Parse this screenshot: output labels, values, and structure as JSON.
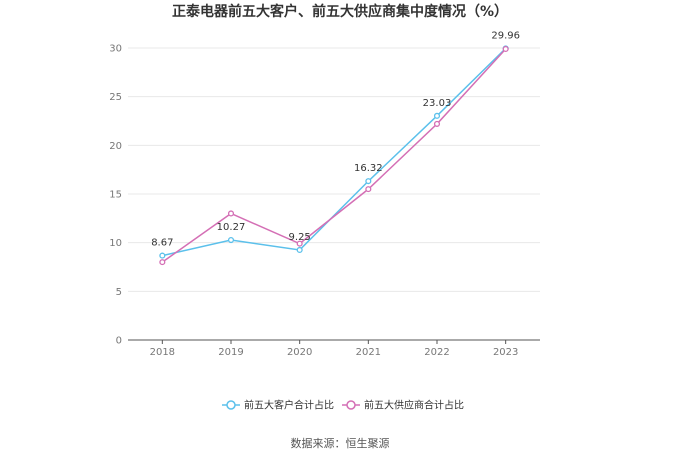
{
  "chart_data": {
    "type": "line",
    "title": "正泰电器前五大客户、前五大供应商集中度情况（%）",
    "x": [
      "2018",
      "2019",
      "2020",
      "2021",
      "2022",
      "2023"
    ],
    "ylim": [
      0,
      30
    ],
    "yticks": [
      "0",
      "5",
      "10",
      "15",
      "20",
      "25",
      "30"
    ],
    "grid": true,
    "legend_position": "bottom",
    "series": [
      {
        "name": "前五大客户合计占比",
        "color": "#5bc0eb",
        "values": [
          8.67,
          10.27,
          9.25,
          16.32,
          23.03,
          29.96
        ],
        "labels": [
          "8.67",
          "10.27",
          "9.25",
          "16.32",
          "23.03",
          "29.96"
        ]
      },
      {
        "name": "前五大供应商合计占比",
        "color": "#d46fb5",
        "values": [
          8.0,
          13.0,
          9.9,
          15.5,
          22.2,
          29.9
        ]
      }
    ],
    "source": "数据来源：恒生聚源"
  }
}
